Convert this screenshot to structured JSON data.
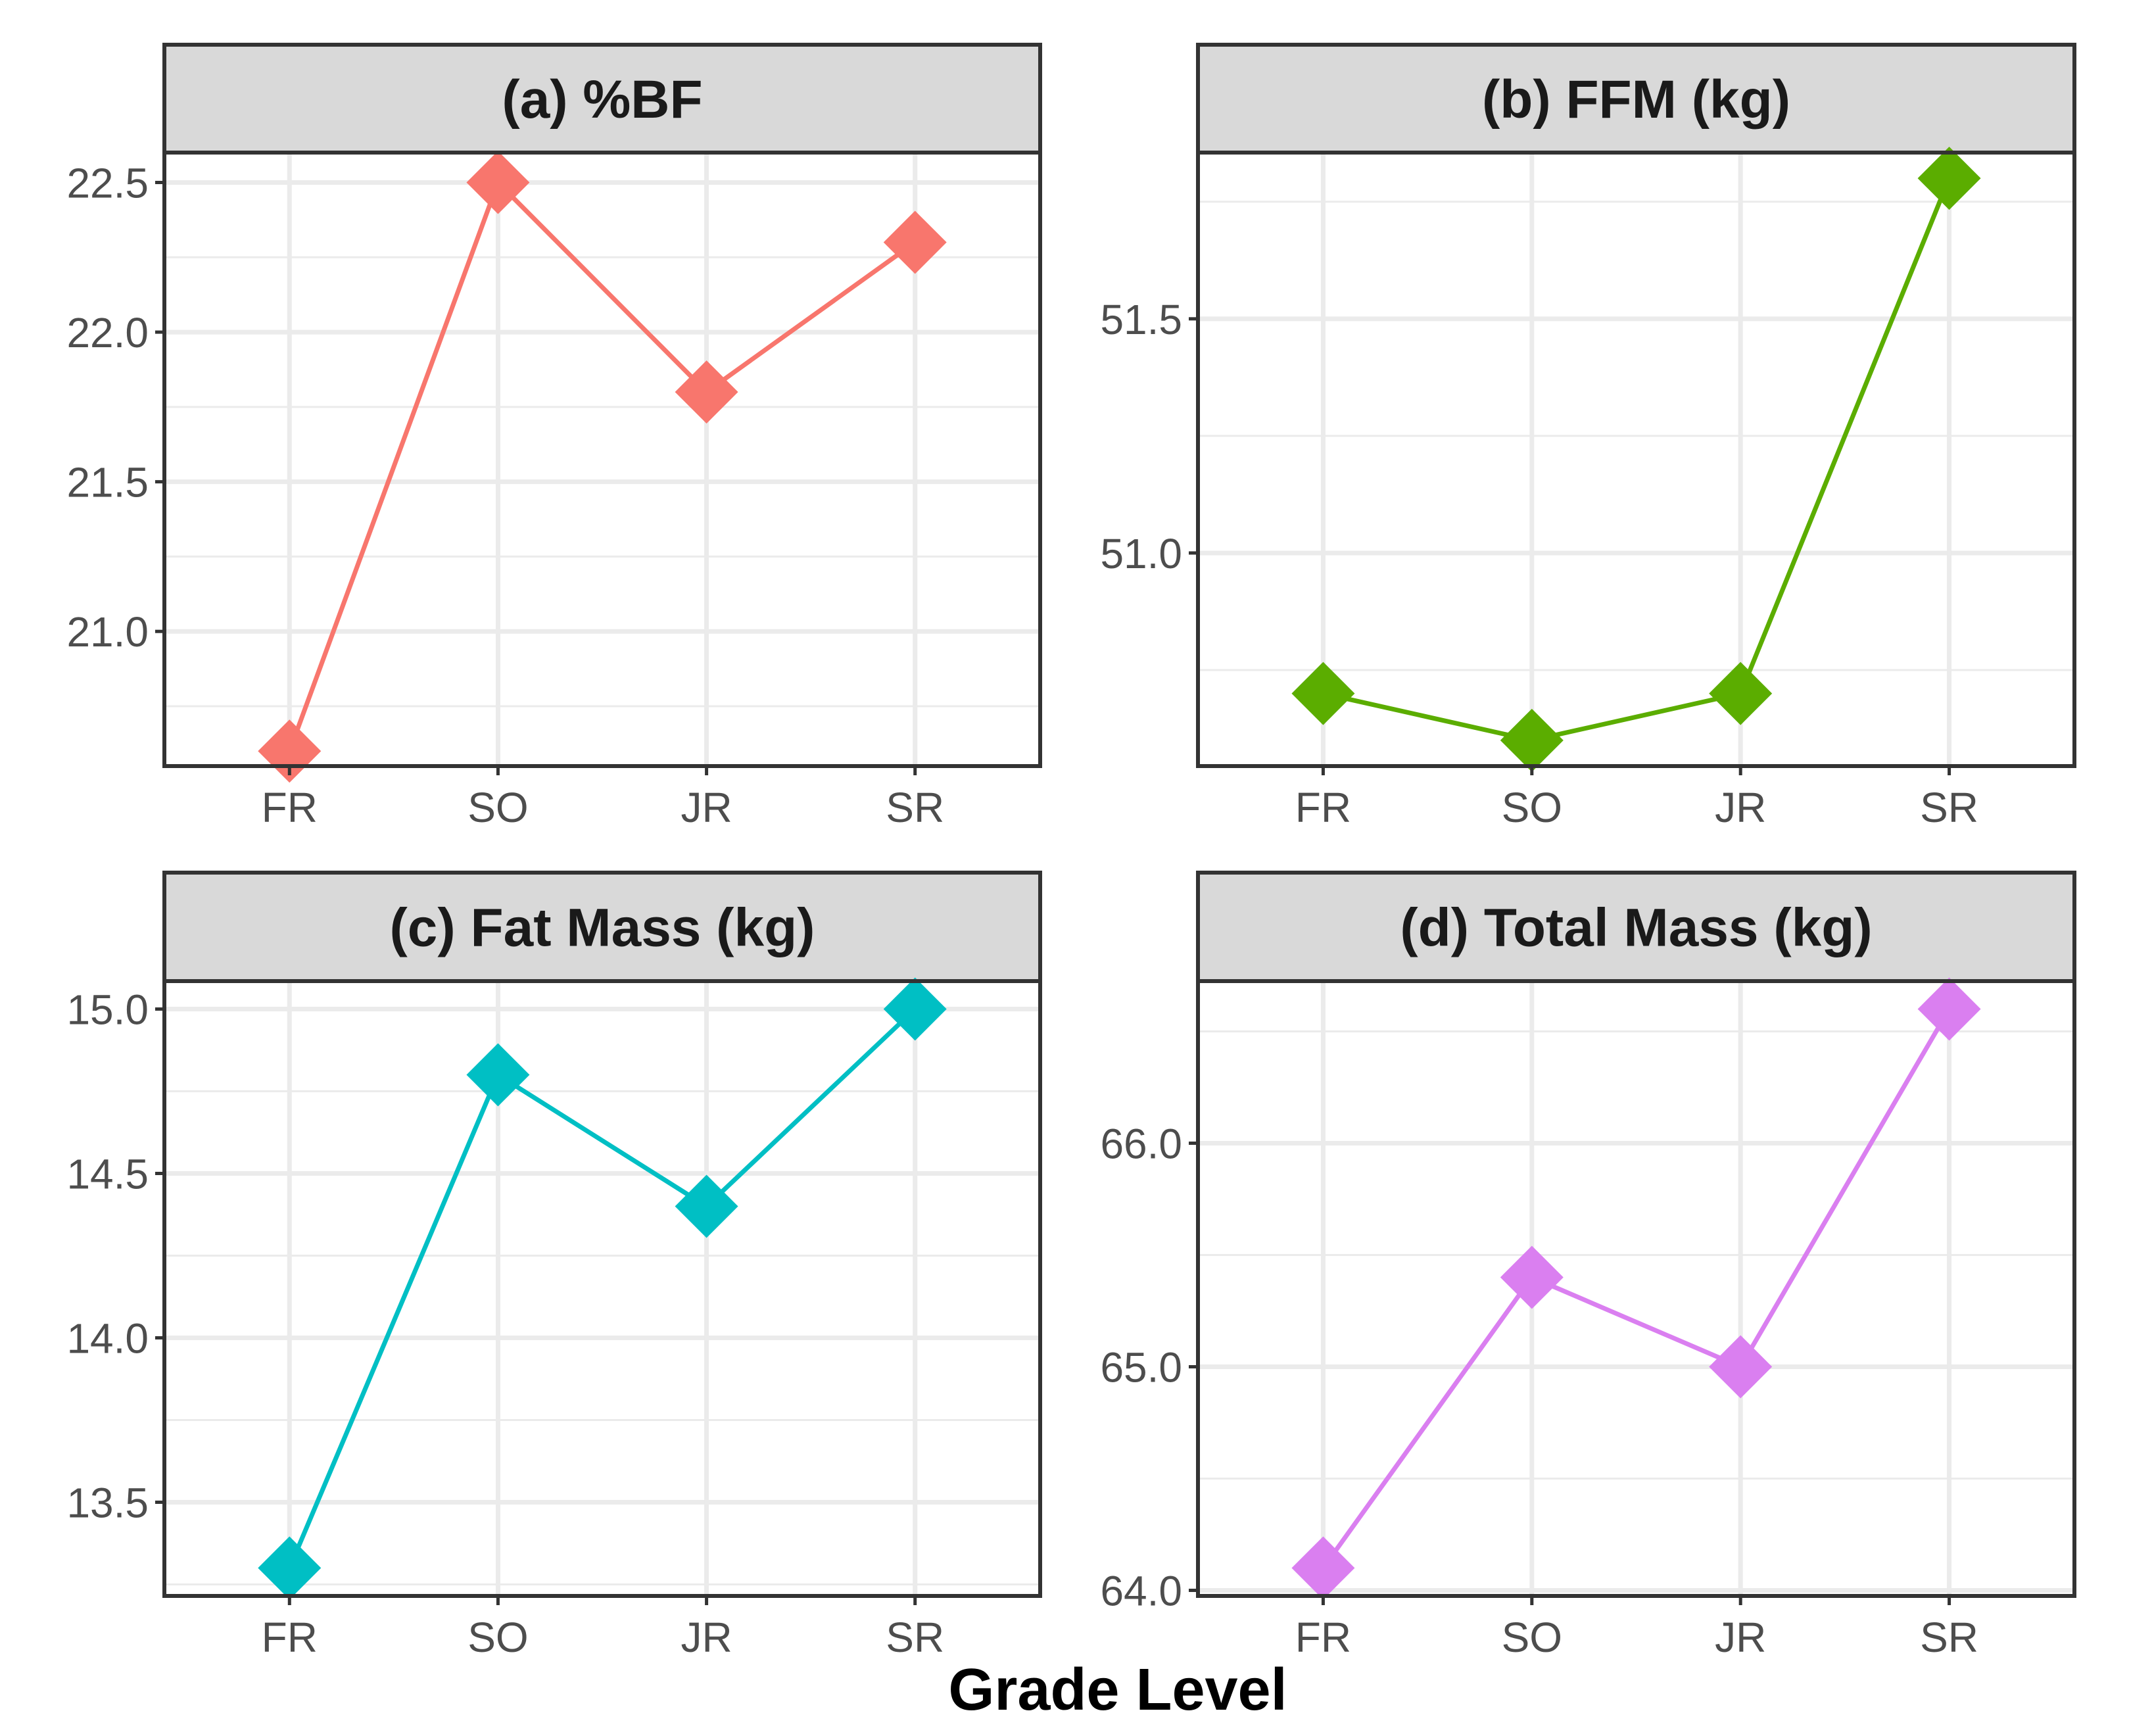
{
  "figure": {
    "xlabel": "Grade Level"
  },
  "chart_data": [
    {
      "type": "line",
      "title": "(a) %BF",
      "categories": [
        "FR",
        "SO",
        "JR",
        "SR"
      ],
      "values": [
        20.6,
        22.5,
        21.8,
        22.3
      ],
      "ylim": [
        20.55,
        22.6
      ],
      "yticks": [
        21.0,
        21.5,
        22.0,
        22.5
      ],
      "ytick_labels": [
        "21.0",
        "21.5",
        "22.0",
        "22.5"
      ],
      "color": "#F8766D",
      "marker": "diamond",
      "grid": true
    },
    {
      "type": "line",
      "title": "(b) FFM (kg)",
      "categories": [
        "FR",
        "SO",
        "JR",
        "SR"
      ],
      "values": [
        50.7,
        50.6,
        50.7,
        51.8
      ],
      "ylim": [
        50.545,
        51.855
      ],
      "yticks": [
        51.0,
        51.5
      ],
      "ytick_labels": [
        "51.0",
        "51.5"
      ],
      "color": "#5BAD00",
      "marker": "diamond",
      "grid": true
    },
    {
      "type": "line",
      "title": "(c) Fat Mass (kg)",
      "categories": [
        "FR",
        "SO",
        "JR",
        "SR"
      ],
      "values": [
        13.3,
        14.8,
        14.4,
        15.0
      ],
      "ylim": [
        13.215,
        15.085
      ],
      "yticks": [
        13.5,
        14.0,
        14.5,
        15.0
      ],
      "ytick_labels": [
        "13.5",
        "14.0",
        "14.5",
        "15.0"
      ],
      "color": "#00BFC4",
      "marker": "diamond",
      "grid": true
    },
    {
      "type": "line",
      "title": "(d) Total Mass (kg)",
      "categories": [
        "FR",
        "SO",
        "JR",
        "SR"
      ],
      "values": [
        64.1,
        65.4,
        65.0,
        66.6
      ],
      "ylim": [
        63.975,
        66.725
      ],
      "yticks": [
        64.0,
        65.0,
        66.0
      ],
      "ytick_labels": [
        "64.0",
        "65.0",
        "66.0"
      ],
      "color": "#DA7FF0",
      "marker": "diamond",
      "grid": true
    }
  ]
}
